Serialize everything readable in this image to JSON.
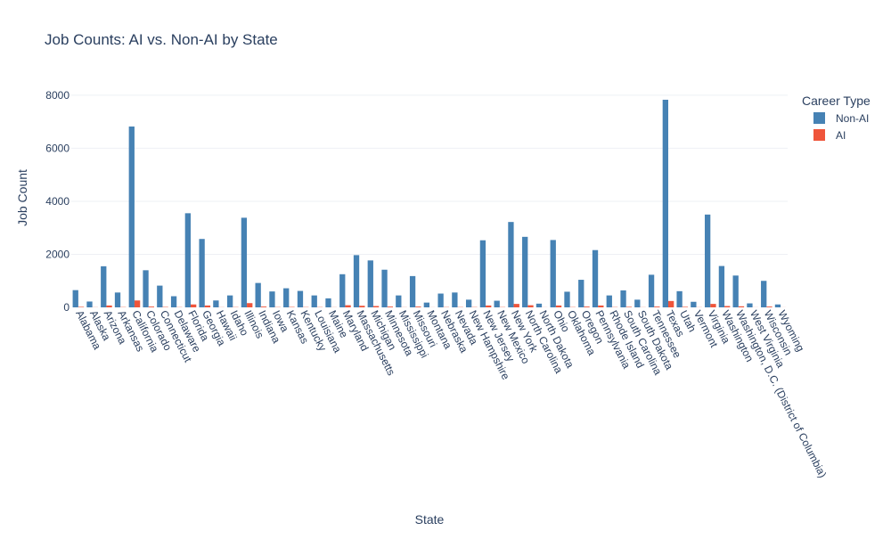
{
  "chart_data": {
    "type": "bar",
    "title": "Job Counts: AI vs. Non-AI by State",
    "xlabel": "State",
    "ylabel": "Job Count",
    "ylim": [
      0,
      8400
    ],
    "yticks": [
      0,
      2000,
      4000,
      6000,
      8000
    ],
    "ytick_labels": [
      "0",
      "2000",
      "4000",
      "6000",
      "8000"
    ],
    "grid": "horizontal",
    "legend_placement": "top-right",
    "legend_title": "Career Type",
    "categories": [
      "Alabama",
      "Alaska",
      "Arizona",
      "Arkansas",
      "California",
      "Colorado",
      "Connecticut",
      "Delaware",
      "Florida",
      "Georgia",
      "Hawaii",
      "Idaho",
      "Illinois",
      "Indiana",
      "Iowa",
      "Kansas",
      "Kentucky",
      "Louisiana",
      "Maine",
      "Maryland",
      "Massachusetts",
      "Michigan",
      "Minnesota",
      "Mississippi",
      "Missouri",
      "Montana",
      "Nebraska",
      "Nevada",
      "New Hampshire",
      "New Jersey",
      "New Mexico",
      "New York",
      "North Carolina",
      "North Dakota",
      "Ohio",
      "Oklahoma",
      "Oregon",
      "Pennsylvania",
      "Rhode Island",
      "South Carolina",
      "South Dakota",
      "Tennessee",
      "Texas",
      "Utah",
      "Vermont",
      "Virginia",
      "Washington",
      "Washington, D.C. (District of Columbia)",
      "West Virginia",
      "Wisconsin",
      "Wyoming"
    ],
    "series": [
      {
        "name": "Non-AI",
        "color": "#4682b4",
        "values": [
          650,
          220,
          1550,
          560,
          6820,
          1400,
          820,
          420,
          3550,
          2580,
          260,
          450,
          3380,
          920,
          600,
          720,
          620,
          450,
          340,
          1250,
          1970,
          1770,
          1420,
          450,
          1180,
          180,
          520,
          560,
          290,
          2530,
          250,
          3220,
          2660,
          140,
          2540,
          590,
          1040,
          2160,
          450,
          640,
          290,
          1230,
          7830,
          610,
          210,
          3500,
          1560,
          1200,
          150,
          1000,
          110
        ]
      },
      {
        "name": "AI",
        "color": "#ef553b",
        "values": [
          20,
          5,
          70,
          10,
          260,
          30,
          15,
          8,
          110,
          70,
          5,
          10,
          160,
          30,
          10,
          15,
          10,
          10,
          5,
          80,
          60,
          50,
          30,
          5,
          30,
          3,
          10,
          10,
          10,
          70,
          10,
          130,
          80,
          3,
          70,
          10,
          30,
          70,
          10,
          20,
          5,
          30,
          240,
          20,
          5,
          130,
          50,
          40,
          3,
          30,
          2
        ]
      }
    ]
  }
}
